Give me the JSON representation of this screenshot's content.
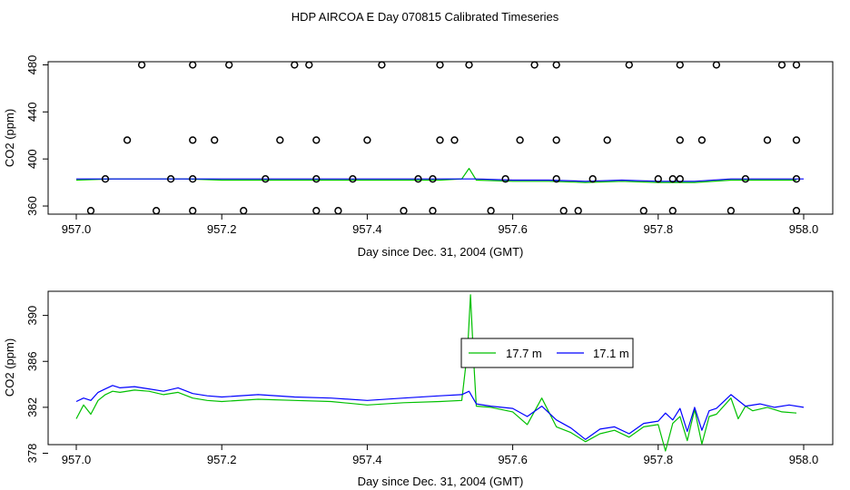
{
  "page_title": "HDP AIRCOA E  Day 070815  Calibrated Timeseries",
  "colors": {
    "green": "#00c000",
    "blue": "#0000ff",
    "black": "#000000"
  },
  "chart_data": [
    {
      "type": "scatter",
      "xlabel": "Day since Dec. 31, 2004 (GMT)",
      "ylabel": "CO2 (ppm)",
      "xlim": [
        957.0,
        958.0
      ],
      "ylim": [
        350,
        485
      ],
      "x_ticks": [
        "957.0",
        "957.2",
        "957.4",
        "957.6",
        "957.8",
        "958.0"
      ],
      "y_ticks": [
        "360",
        "400",
        "440",
        "480"
      ],
      "points": {
        "x": [
          957.09,
          957.16,
          957.21,
          957.3,
          957.32,
          957.42,
          957.5,
          957.54,
          957.63,
          957.66,
          957.76,
          957.83,
          957.88,
          957.97,
          957.99,
          957.07,
          957.16,
          957.19,
          957.28,
          957.33,
          957.4,
          957.5,
          957.52,
          957.61,
          957.66,
          957.73,
          957.83,
          957.86,
          957.95,
          957.99,
          957.04,
          957.13,
          957.16,
          957.26,
          957.33,
          957.38,
          957.47,
          957.49,
          957.59,
          957.66,
          957.71,
          957.8,
          957.82,
          957.83,
          957.92,
          957.99,
          957.02,
          957.11,
          957.16,
          957.23,
          957.33,
          957.36,
          957.45,
          957.49,
          957.57,
          957.67,
          957.69,
          957.78,
          957.82,
          957.9,
          957.99
        ],
        "y": [
          480,
          480,
          480,
          480,
          480,
          480,
          480,
          480,
          480,
          480,
          480,
          480,
          480,
          480,
          480,
          416,
          416,
          416,
          416,
          416,
          416,
          416,
          416,
          416,
          416,
          416,
          416,
          416,
          416,
          416,
          383,
          383,
          383,
          383,
          383,
          383,
          383,
          383,
          383,
          383,
          383,
          383,
          383,
          383,
          383,
          383,
          356,
          356,
          356,
          356,
          356,
          356,
          356,
          356,
          356,
          356,
          356,
          356,
          356,
          356,
          356
        ]
      },
      "series": [
        {
          "x": [
            957.0,
            957.05,
            957.1,
            957.15,
            957.2,
            957.25,
            957.3,
            957.35,
            957.4,
            957.45,
            957.5,
            957.53,
            957.54,
            957.55,
            957.6,
            957.65,
            957.7,
            957.75,
            957.8,
            957.85,
            957.9,
            957.95,
            957.99
          ],
          "y": [
            382,
            383,
            383,
            383,
            382,
            382,
            382,
            382,
            382,
            382,
            382,
            383,
            392,
            382,
            381,
            381,
            380,
            381,
            380,
            380,
            382,
            382,
            382
          ]
        },
        {
          "x": [
            957.0,
            957.05,
            957.1,
            957.15,
            957.2,
            957.25,
            957.3,
            957.35,
            957.4,
            957.45,
            957.5,
            957.55,
            957.6,
            957.65,
            957.7,
            957.75,
            957.8,
            957.85,
            957.9,
            957.95,
            958.0
          ],
          "y": [
            383,
            383,
            383,
            383,
            383,
            383,
            383,
            383,
            383,
            383,
            383,
            383,
            382,
            382,
            381,
            382,
            381,
            381,
            383,
            383,
            383
          ]
        }
      ]
    },
    {
      "type": "line",
      "xlabel": "Day since Dec. 31, 2004 (GMT)",
      "ylabel": "CO2 (ppm)",
      "xlim": [
        957.0,
        958.0
      ],
      "ylim": [
        378,
        392.3
      ],
      "x_ticks": [
        "957.0",
        "957.2",
        "957.4",
        "957.6",
        "957.8",
        "958.0"
      ],
      "y_ticks": [
        "378",
        "382",
        "386",
        "390"
      ],
      "legend_position": "top-center",
      "series": [
        {
          "name": "17.7 m",
          "x": [
            957.0,
            957.01,
            957.02,
            957.03,
            957.04,
            957.05,
            957.06,
            957.08,
            957.1,
            957.12,
            957.14,
            957.16,
            957.18,
            957.2,
            957.25,
            957.3,
            957.35,
            957.4,
            957.45,
            957.5,
            957.53,
            957.538,
            957.542,
            957.546,
            957.55,
            957.57,
            957.6,
            957.62,
            957.64,
            957.66,
            957.68,
            957.7,
            957.72,
            957.74,
            957.76,
            957.78,
            957.8,
            957.81,
            957.82,
            957.83,
            957.84,
            957.85,
            957.86,
            957.87,
            957.88,
            957.9,
            957.91,
            957.92,
            957.93,
            957.95,
            957.97,
            957.99
          ],
          "y": [
            381.0,
            382.2,
            381.4,
            382.6,
            383.1,
            383.4,
            383.3,
            383.5,
            383.4,
            383.1,
            383.3,
            382.8,
            382.6,
            382.5,
            382.7,
            382.6,
            382.5,
            382.2,
            382.4,
            382.5,
            382.6,
            387.0,
            391.8,
            386.5,
            382.1,
            382.0,
            381.6,
            380.5,
            382.8,
            380.3,
            379.8,
            379.0,
            379.7,
            380.0,
            379.4,
            380.3,
            380.5,
            378.2,
            380.6,
            381.2,
            379.1,
            381.8,
            378.8,
            381.2,
            381.4,
            382.8,
            381.0,
            382.1,
            381.7,
            382.0,
            381.6,
            381.5
          ]
        },
        {
          "name": "17.1 m",
          "x": [
            957.0,
            957.01,
            957.02,
            957.03,
            957.04,
            957.05,
            957.06,
            957.08,
            957.1,
            957.12,
            957.14,
            957.16,
            957.18,
            957.2,
            957.25,
            957.3,
            957.35,
            957.4,
            957.45,
            957.5,
            957.53,
            957.54,
            957.55,
            957.57,
            957.6,
            957.62,
            957.64,
            957.66,
            957.68,
            957.7,
            957.72,
            957.74,
            957.76,
            957.78,
            957.8,
            957.81,
            957.82,
            957.83,
            957.84,
            957.85,
            957.86,
            957.87,
            957.88,
            957.9,
            957.92,
            957.94,
            957.96,
            957.98,
            958.0
          ],
          "y": [
            382.5,
            382.8,
            382.6,
            383.3,
            383.6,
            383.9,
            383.7,
            383.8,
            383.6,
            383.4,
            383.7,
            383.2,
            383.0,
            382.9,
            383.1,
            382.9,
            382.8,
            382.6,
            382.8,
            383.0,
            383.1,
            383.4,
            382.3,
            382.1,
            381.9,
            381.2,
            382.1,
            380.9,
            380.2,
            379.2,
            380.1,
            380.3,
            379.7,
            380.6,
            380.8,
            381.5,
            380.9,
            381.9,
            379.9,
            382.0,
            380.0,
            381.7,
            381.9,
            383.1,
            382.1,
            382.3,
            382.0,
            382.2,
            382.0
          ]
        }
      ]
    }
  ]
}
